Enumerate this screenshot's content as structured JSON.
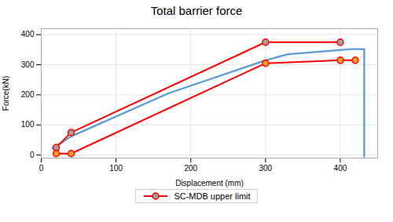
{
  "chart_data": {
    "type": "line",
    "title": "Total barrier force",
    "xlabel": "Displacement (mm)",
    "ylabel": "Force(kN)",
    "xlim": [
      0,
      450
    ],
    "ylim": [
      -10,
      420
    ],
    "xticks": [
      0,
      100,
      200,
      300,
      400
    ],
    "yticks": [
      0,
      100,
      200,
      300,
      400
    ],
    "grid": true,
    "legend": "bottom",
    "series": [
      {
        "color": "#5B9BD5",
        "x": [
          15,
          40,
          170,
          300,
          330,
          415,
          432,
          432
        ],
        "values": [
          22,
          62,
          205,
          315,
          335,
          352,
          352,
          -5
        ]
      },
      {
        "name": "SC-MDB upper limit",
        "color": "#FF0000",
        "marker": "circle",
        "x": [
          20,
          40,
          300,
          400
        ],
        "values": [
          25,
          75,
          375,
          375
        ]
      },
      {
        "color": "#FF0000",
        "marker": "circle",
        "x": [
          20,
          40,
          300,
          400,
          420
        ],
        "values": [
          5,
          5,
          305,
          315,
          315
        ]
      }
    ]
  }
}
